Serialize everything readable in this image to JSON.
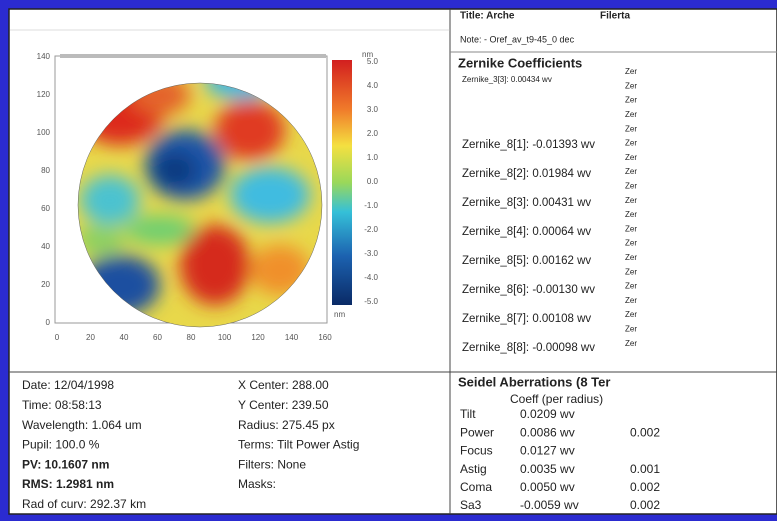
{
  "map": {
    "y_labels": [
      "140",
      "120",
      "100",
      "80",
      "60",
      "40",
      "20",
      "0"
    ],
    "x_labels": [
      "0",
      "20",
      "40",
      "60",
      "80",
      "100",
      "120",
      "140",
      "160"
    ],
    "unit_top": "nm",
    "unit_bottom": "nm",
    "scale_labels": [
      "5.0",
      "4.0",
      "3.0",
      "2.0",
      "1.0",
      "0.0",
      "-1.0",
      "-2.0",
      "-3.0",
      "-4.0",
      "-5.0"
    ]
  },
  "info": {
    "title": "Title: Arche",
    "title_right": "Filerta",
    "note": "Note: - Oref_av_t9-45_0 dec",
    "heading": "Zernike Coefficients",
    "first": "Zernike_3[3]: 0.00434 wv",
    "zernike": [
      "Zernike_8[1]: -0.01393 wv",
      "Zernike_8[2]: 0.01984 wv",
      "Zernike_8[3]: 0.00431 wv",
      "Zernike_8[4]: 0.00064 wv",
      "Zernike_8[5]: 0.00162 wv",
      "Zernike_8[6]: -0.00130 wv",
      "Zernike_8[7]: 0.00108 wv",
      "Zernike_8[8]: -0.00098 wv"
    ],
    "zer_column": [
      "Zer",
      "Zer",
      "Zer",
      "Zer",
      "Zer",
      "Zer",
      "Zer",
      "Zer",
      "Zer",
      "Zer",
      "Zer",
      "Zer",
      "Zer",
      "Zer",
      "Zer",
      "Zer",
      "Zer",
      "Zer",
      "Zer",
      "Zer"
    ]
  },
  "details": {
    "left": [
      "Date: 12/04/1998",
      "Time: 08:58:13",
      "Wavelength: 1.064 um",
      "Pupil: 100.0 %",
      "PV: 10.1607 nm",
      "RMS: 1.2981 nm",
      "Rad of curv: 292.37 km"
    ],
    "right": [
      "X Center: 288.00",
      "Y Center: 239.50",
      "Radius: 275.45 px",
      "Terms: Tilt Power Astig",
      "Filters: None",
      "Masks:"
    ]
  },
  "seidel": {
    "heading": "Seidel Aberrations (8 Ter",
    "subheading": "Coeff (per radius)",
    "rows": [
      [
        "Tilt",
        "0.0209 wv",
        ""
      ],
      [
        "Power",
        "0.0086 wv",
        "0.002"
      ],
      [
        "Focus",
        "0.0127 wv",
        ""
      ],
      [
        "Astig",
        "0.0035 wv",
        "0.001"
      ],
      [
        "Coma",
        "0.0050 wv",
        "0.002"
      ],
      [
        "Sa3",
        "-0.0059 wv",
        "0.002"
      ]
    ]
  }
}
